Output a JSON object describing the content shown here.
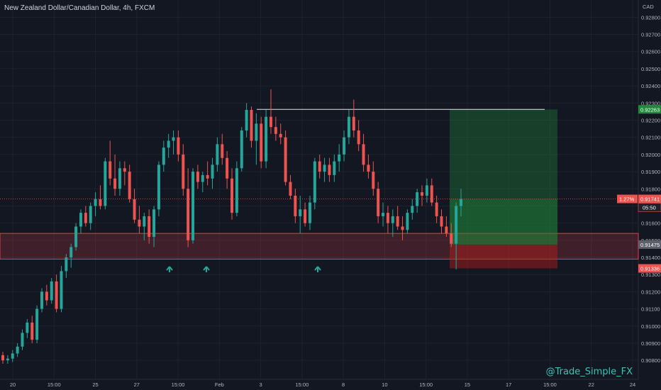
{
  "header": {
    "title": "New Zealand Dollar/Canadian Dollar, 4h, FXCM",
    "currency": "CAD"
  },
  "watermark": "@Trade_Simple_FX",
  "colors": {
    "background": "#131722",
    "up": "#26a69a",
    "down": "#ef5350",
    "support_zone": "#e0414a",
    "target_zone": "#1f8a3a",
    "stop_zone": "#b71c1c",
    "resistance_line": "#e6e6e6",
    "arrow": "#26a69a"
  },
  "price_tags": {
    "current_change": "1.27%",
    "current_price": "0.91741",
    "countdown": "05:50",
    "target": "0.92263",
    "entry": "0.91475",
    "stop": "0.91336"
  },
  "chart_data": {
    "type": "candlestick",
    "title": "New Zealand Dollar/Canadian Dollar, 4h, FXCM",
    "ylabel": "CAD",
    "ylim": [
      0.9078,
      0.9288
    ],
    "y_ticks": [
      "0.92800",
      "0.92700",
      "0.92600",
      "0.92500",
      "0.92400",
      "0.92300",
      "0.92200",
      "0.92100",
      "0.92000",
      "0.91900",
      "0.91800",
      "0.91700",
      "0.91600",
      "0.91500",
      "0.91400",
      "0.91300",
      "0.91200",
      "0.91100",
      "0.91000",
      "0.90900",
      "0.90800"
    ],
    "x_ticks": [
      "20",
      "15:00",
      "25",
      "27",
      "15:00",
      "Feb",
      "3",
      "15:00",
      "8",
      "10",
      "15:00",
      "15",
      "17",
      "15:00",
      "22",
      "24"
    ],
    "candles": [
      [
        0.9083,
        0.9085,
        0.9078,
        0.908
      ],
      [
        0.908,
        0.9083,
        0.9078,
        0.9081
      ],
      [
        0.9081,
        0.9086,
        0.9079,
        0.9084
      ],
      [
        0.9084,
        0.909,
        0.9082,
        0.9088
      ],
      [
        0.9088,
        0.9098,
        0.9086,
        0.9096
      ],
      [
        0.9096,
        0.9104,
        0.9093,
        0.9102
      ],
      [
        0.9102,
        0.9106,
        0.909,
        0.9092
      ],
      [
        0.9092,
        0.9112,
        0.909,
        0.911
      ],
      [
        0.911,
        0.9122,
        0.9108,
        0.912
      ],
      [
        0.912,
        0.9124,
        0.9112,
        0.9115
      ],
      [
        0.9115,
        0.9128,
        0.9113,
        0.9126
      ],
      [
        0.9126,
        0.913,
        0.9108,
        0.911
      ],
      [
        0.911,
        0.9135,
        0.9108,
        0.9132
      ],
      [
        0.9132,
        0.9142,
        0.9128,
        0.914
      ],
      [
        0.914,
        0.9148,
        0.9134,
        0.9146
      ],
      [
        0.9146,
        0.916,
        0.9144,
        0.9158
      ],
      [
        0.9158,
        0.9168,
        0.9154,
        0.9166
      ],
      [
        0.9166,
        0.917,
        0.9158,
        0.916
      ],
      [
        0.916,
        0.9172,
        0.9156,
        0.917
      ],
      [
        0.917,
        0.9178,
        0.9164,
        0.9174
      ],
      [
        0.9174,
        0.9182,
        0.9168,
        0.917
      ],
      [
        0.917,
        0.9198,
        0.9168,
        0.9196
      ],
      [
        0.9196,
        0.9208,
        0.9182,
        0.9186
      ],
      [
        0.9186,
        0.92,
        0.9176,
        0.918
      ],
      [
        0.918,
        0.9196,
        0.9176,
        0.9192
      ],
      [
        0.9192,
        0.9196,
        0.9182,
        0.919
      ],
      [
        0.919,
        0.9194,
        0.9172,
        0.9174
      ],
      [
        0.9174,
        0.918,
        0.916,
        0.9162
      ],
      [
        0.9162,
        0.917,
        0.9154,
        0.9158
      ],
      [
        0.9158,
        0.9166,
        0.915,
        0.9164
      ],
      [
        0.9164,
        0.9168,
        0.9148,
        0.9152
      ],
      [
        0.9152,
        0.917,
        0.9146,
        0.9168
      ],
      [
        0.9168,
        0.9196,
        0.9164,
        0.9194
      ],
      [
        0.9194,
        0.9208,
        0.919,
        0.9204
      ],
      [
        0.9204,
        0.9212,
        0.9198,
        0.9208
      ],
      [
        0.9208,
        0.9214,
        0.92,
        0.921
      ],
      [
        0.921,
        0.9214,
        0.9196,
        0.92
      ],
      [
        0.92,
        0.9206,
        0.9176,
        0.918
      ],
      [
        0.918,
        0.9192,
        0.9146,
        0.915
      ],
      [
        0.915,
        0.9192,
        0.9148,
        0.919
      ],
      [
        0.919,
        0.9194,
        0.918,
        0.9184
      ],
      [
        0.9184,
        0.919,
        0.9178,
        0.9188
      ],
      [
        0.9188,
        0.9196,
        0.9182,
        0.9186
      ],
      [
        0.9186,
        0.9198,
        0.918,
        0.9194
      ],
      [
        0.9194,
        0.921,
        0.919,
        0.9206
      ],
      [
        0.9206,
        0.9212,
        0.9194,
        0.9198
      ],
      [
        0.9198,
        0.9202,
        0.918,
        0.9186
      ],
      [
        0.9186,
        0.9192,
        0.9162,
        0.9166
      ],
      [
        0.9166,
        0.9196,
        0.9164,
        0.9192
      ],
      [
        0.9192,
        0.9216,
        0.919,
        0.9214
      ],
      [
        0.9214,
        0.923,
        0.921,
        0.9226
      ],
      [
        0.9226,
        0.9228,
        0.9204,
        0.9208
      ],
      [
        0.9208,
        0.9224,
        0.9194,
        0.9218
      ],
      [
        0.9218,
        0.9222,
        0.9192,
        0.9196
      ],
      [
        0.9196,
        0.9226,
        0.9192,
        0.9222
      ],
      [
        0.9222,
        0.9238,
        0.9212,
        0.9216
      ],
      [
        0.9216,
        0.9222,
        0.9208,
        0.9212
      ],
      [
        0.9212,
        0.9218,
        0.9206,
        0.921
      ],
      [
        0.921,
        0.9214,
        0.9182,
        0.9184
      ],
      [
        0.9184,
        0.9188,
        0.9174,
        0.9176
      ],
      [
        0.9176,
        0.918,
        0.916,
        0.9164
      ],
      [
        0.9164,
        0.9176,
        0.9154,
        0.9168
      ],
      [
        0.9168,
        0.9172,
        0.9158,
        0.916
      ],
      [
        0.916,
        0.9176,
        0.9156,
        0.9172
      ],
      [
        0.9172,
        0.9198,
        0.9168,
        0.9196
      ],
      [
        0.9196,
        0.92,
        0.9186,
        0.919
      ],
      [
        0.919,
        0.9198,
        0.9184,
        0.9194
      ],
      [
        0.9194,
        0.9198,
        0.9184,
        0.9188
      ],
      [
        0.9188,
        0.92,
        0.9184,
        0.9196
      ],
      [
        0.9196,
        0.9206,
        0.919,
        0.92
      ],
      [
        0.92,
        0.9214,
        0.9196,
        0.921
      ],
      [
        0.921,
        0.9226,
        0.9206,
        0.9222
      ],
      [
        0.9222,
        0.9232,
        0.921,
        0.9214
      ],
      [
        0.9214,
        0.922,
        0.9202,
        0.9206
      ],
      [
        0.9206,
        0.9212,
        0.919,
        0.9194
      ],
      [
        0.9194,
        0.92,
        0.9186,
        0.919
      ],
      [
        0.919,
        0.9196,
        0.9176,
        0.918
      ],
      [
        0.918,
        0.9184,
        0.916,
        0.9164
      ],
      [
        0.9164,
        0.9172,
        0.9158,
        0.9166
      ],
      [
        0.9166,
        0.917,
        0.9154,
        0.916
      ],
      [
        0.916,
        0.9168,
        0.9152,
        0.9164
      ],
      [
        0.9164,
        0.917,
        0.9156,
        0.9158
      ],
      [
        0.9158,
        0.9164,
        0.915,
        0.9156
      ],
      [
        0.9156,
        0.9168,
        0.9154,
        0.9166
      ],
      [
        0.9166,
        0.9174,
        0.9162,
        0.917
      ],
      [
        0.917,
        0.918,
        0.9166,
        0.9178
      ],
      [
        0.9178,
        0.9182,
        0.917,
        0.9176
      ],
      [
        0.9176,
        0.9186,
        0.9172,
        0.9182
      ],
      [
        0.9182,
        0.9186,
        0.917,
        0.9172
      ],
      [
        0.9172,
        0.9176,
        0.916,
        0.9164
      ],
      [
        0.9164,
        0.9168,
        0.9154,
        0.9158
      ],
      [
        0.9158,
        0.9164,
        0.9152,
        0.9154
      ],
      [
        0.9154,
        0.916,
        0.9146,
        0.9148
      ],
      [
        0.9148,
        0.9172,
        0.9133,
        0.917
      ],
      [
        0.917,
        0.918,
        0.9164,
        0.9174
      ]
    ],
    "zones": {
      "support": [
        0.9139,
        0.9154
      ],
      "target": [
        0.91475,
        0.92263
      ],
      "stop": [
        0.91336,
        0.91475
      ],
      "resistance": 0.92263
    },
    "support_touch_arrows": 3
  }
}
